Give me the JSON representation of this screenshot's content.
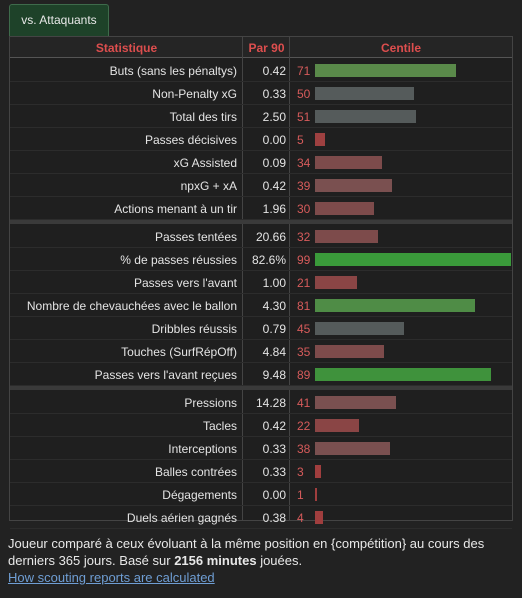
{
  "tab": {
    "label": "vs. Attaquants"
  },
  "header": {
    "stat": "Statistique",
    "p90": "Par 90",
    "pct": "Centile"
  },
  "rows": [
    {
      "label": "Buts (sans les pénaltys)",
      "per90": "0.42",
      "pct": 71,
      "color": "#5a8a4a"
    },
    {
      "label": "Non-Penalty xG",
      "per90": "0.33",
      "pct": 50,
      "color": "#555b5b"
    },
    {
      "label": "Total des tirs",
      "per90": "2.50",
      "pct": 51,
      "color": "#555b5b"
    },
    {
      "label": "Passes décisives",
      "per90": "0.00",
      "pct": 5,
      "color": "#9e4040"
    },
    {
      "label": "xG Assisted",
      "per90": "0.09",
      "pct": 34,
      "color": "#7d4b4b"
    },
    {
      "label": "npxG + xA",
      "per90": "0.42",
      "pct": 39,
      "color": "#7a5050"
    },
    {
      "label": "Actions menant à un tir",
      "per90": "1.96",
      "pct": 30,
      "color": "#7d4b4b"
    },
    {
      "label": "Passes tentées",
      "per90": "20.66",
      "pct": 32,
      "color": "#7d4b4b"
    },
    {
      "label": "% de passes réussies",
      "per90": "82.6%",
      "pct": 99,
      "color": "#3a9a3a"
    },
    {
      "label": "Passes vers l'avant",
      "per90": "1.00",
      "pct": 21,
      "color": "#8a4545"
    },
    {
      "label": "Nombre de chevauchées avec le ballon",
      "per90": "4.30",
      "pct": 81,
      "color": "#4f8c46"
    },
    {
      "label": "Dribbles réussis",
      "per90": "0.79",
      "pct": 45,
      "color": "#555b5b"
    },
    {
      "label": "Touches (SurfRépOff)",
      "per90": "4.84",
      "pct": 35,
      "color": "#7d4b4b"
    },
    {
      "label": "Passes vers l'avant reçues",
      "per90": "9.48",
      "pct": 89,
      "color": "#3f923c"
    },
    {
      "label": "Pressions",
      "per90": "14.28",
      "pct": 41,
      "color": "#7a5050"
    },
    {
      "label": "Tacles",
      "per90": "0.42",
      "pct": 22,
      "color": "#8a4545"
    },
    {
      "label": "Interceptions",
      "per90": "0.33",
      "pct": 38,
      "color": "#7a5050"
    },
    {
      "label": "Balles contrées",
      "per90": "0.33",
      "pct": 3,
      "color": "#a03e3e"
    },
    {
      "label": "Dégagements",
      "per90": "0.00",
      "pct": 1,
      "color": "#a03e3e"
    },
    {
      "label": "Duels aérien gagnés",
      "per90": "0.38",
      "pct": 4,
      "color": "#a03e3e"
    }
  ],
  "note": {
    "text1": "Joueur comparé à ceux évoluant à la même position en {compétition} au cours des derniers 365 jours. Basé sur ",
    "minutes": "2156 minutes",
    "text2": " jouées.",
    "link": "How scouting reports are calculated"
  }
}
